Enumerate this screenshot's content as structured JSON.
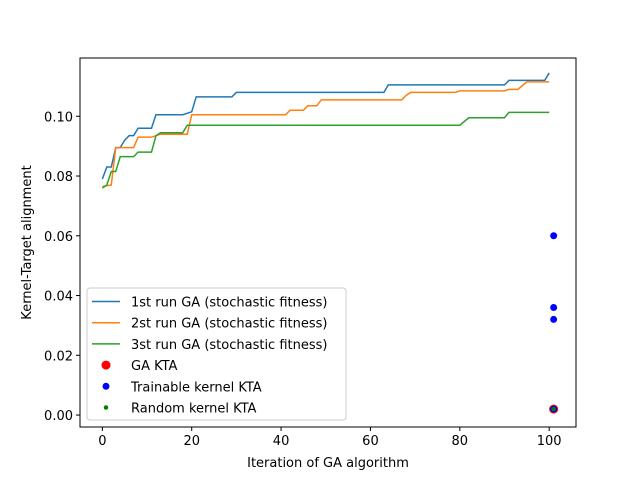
{
  "chart_data": {
    "type": "line",
    "xlabel": "Iteration of GA algorithm",
    "ylabel": "Kernel-Target alignment",
    "xlim": [
      -5,
      106
    ],
    "ylim": [
      -0.004,
      0.1195
    ],
    "xticks": [
      0,
      20,
      40,
      60,
      80,
      100
    ],
    "yticks": [
      0.0,
      0.02,
      0.04,
      0.06,
      0.08,
      0.1
    ],
    "ytick_labels": [
      "0.00",
      "0.02",
      "0.04",
      "0.06",
      "0.08",
      "0.10"
    ],
    "grid": false,
    "legend_position": "lower-left",
    "series": [
      {
        "name": "1st run GA (stochastic fitness)",
        "color": "#1f77b4",
        "points": [
          [
            0,
            0.079
          ],
          [
            1,
            0.083
          ],
          [
            2,
            0.083
          ],
          [
            3,
            0.0895
          ],
          [
            4,
            0.0895
          ],
          [
            5,
            0.092
          ],
          [
            6,
            0.0935
          ],
          [
            7,
            0.0935
          ],
          [
            8,
            0.096
          ],
          [
            11,
            0.096
          ],
          [
            12,
            0.1005
          ],
          [
            18,
            0.1005
          ],
          [
            20,
            0.1015
          ],
          [
            21,
            0.1065
          ],
          [
            29,
            0.1065
          ],
          [
            30,
            0.108
          ],
          [
            63,
            0.108
          ],
          [
            64,
            0.1105
          ],
          [
            90,
            0.1105
          ],
          [
            91,
            0.112
          ],
          [
            99,
            0.112
          ],
          [
            100,
            0.1145
          ]
        ]
      },
      {
        "name": "2st run GA (stochastic fitness)",
        "color": "#ff7f0e",
        "points": [
          [
            0,
            0.0765
          ],
          [
            2,
            0.077
          ],
          [
            3,
            0.0895
          ],
          [
            4,
            0.0895
          ],
          [
            5,
            0.0895
          ],
          [
            7,
            0.0895
          ],
          [
            8,
            0.093
          ],
          [
            11,
            0.093
          ],
          [
            12,
            0.0935
          ],
          [
            13,
            0.094
          ],
          [
            19,
            0.094
          ],
          [
            20,
            0.1005
          ],
          [
            41,
            0.1005
          ],
          [
            42,
            0.102
          ],
          [
            45,
            0.102
          ],
          [
            46,
            0.1035
          ],
          [
            48,
            0.1035
          ],
          [
            49,
            0.1055
          ],
          [
            67,
            0.1055
          ],
          [
            68,
            0.107
          ],
          [
            69,
            0.108
          ],
          [
            79,
            0.108
          ],
          [
            80,
            0.1085
          ],
          [
            90,
            0.1085
          ],
          [
            91,
            0.109
          ],
          [
            93,
            0.109
          ],
          [
            95,
            0.1115
          ],
          [
            100,
            0.1115
          ]
        ]
      },
      {
        "name": "3st run GA (stochastic fitness)",
        "color": "#2ca02c",
        "points": [
          [
            0,
            0.076
          ],
          [
            1,
            0.077
          ],
          [
            2,
            0.0815
          ],
          [
            3,
            0.0815
          ],
          [
            4,
            0.0865
          ],
          [
            7,
            0.0865
          ],
          [
            8,
            0.088
          ],
          [
            11,
            0.088
          ],
          [
            12,
            0.0935
          ],
          [
            13,
            0.0945
          ],
          [
            18,
            0.0945
          ],
          [
            19,
            0.097
          ],
          [
            80,
            0.097
          ],
          [
            82,
            0.0995
          ],
          [
            90,
            0.0995
          ],
          [
            91,
            0.1013
          ],
          [
            100,
            0.1013
          ]
        ]
      }
    ],
    "scatter": [
      {
        "name": "GA KTA",
        "color": "#ff0000",
        "size": 8,
        "points": [
          [
            101,
            0.002
          ]
        ]
      },
      {
        "name": "Trainable kernel KTA",
        "color": "#0000ff",
        "size": 6,
        "points": [
          [
            101,
            0.06
          ],
          [
            101,
            0.036
          ],
          [
            101,
            0.032
          ],
          [
            101,
            0.002
          ]
        ]
      },
      {
        "name": "Random kernel KTA",
        "color": "#008000",
        "size": 3.5,
        "points": [
          [
            101,
            0.002
          ]
        ]
      }
    ]
  }
}
